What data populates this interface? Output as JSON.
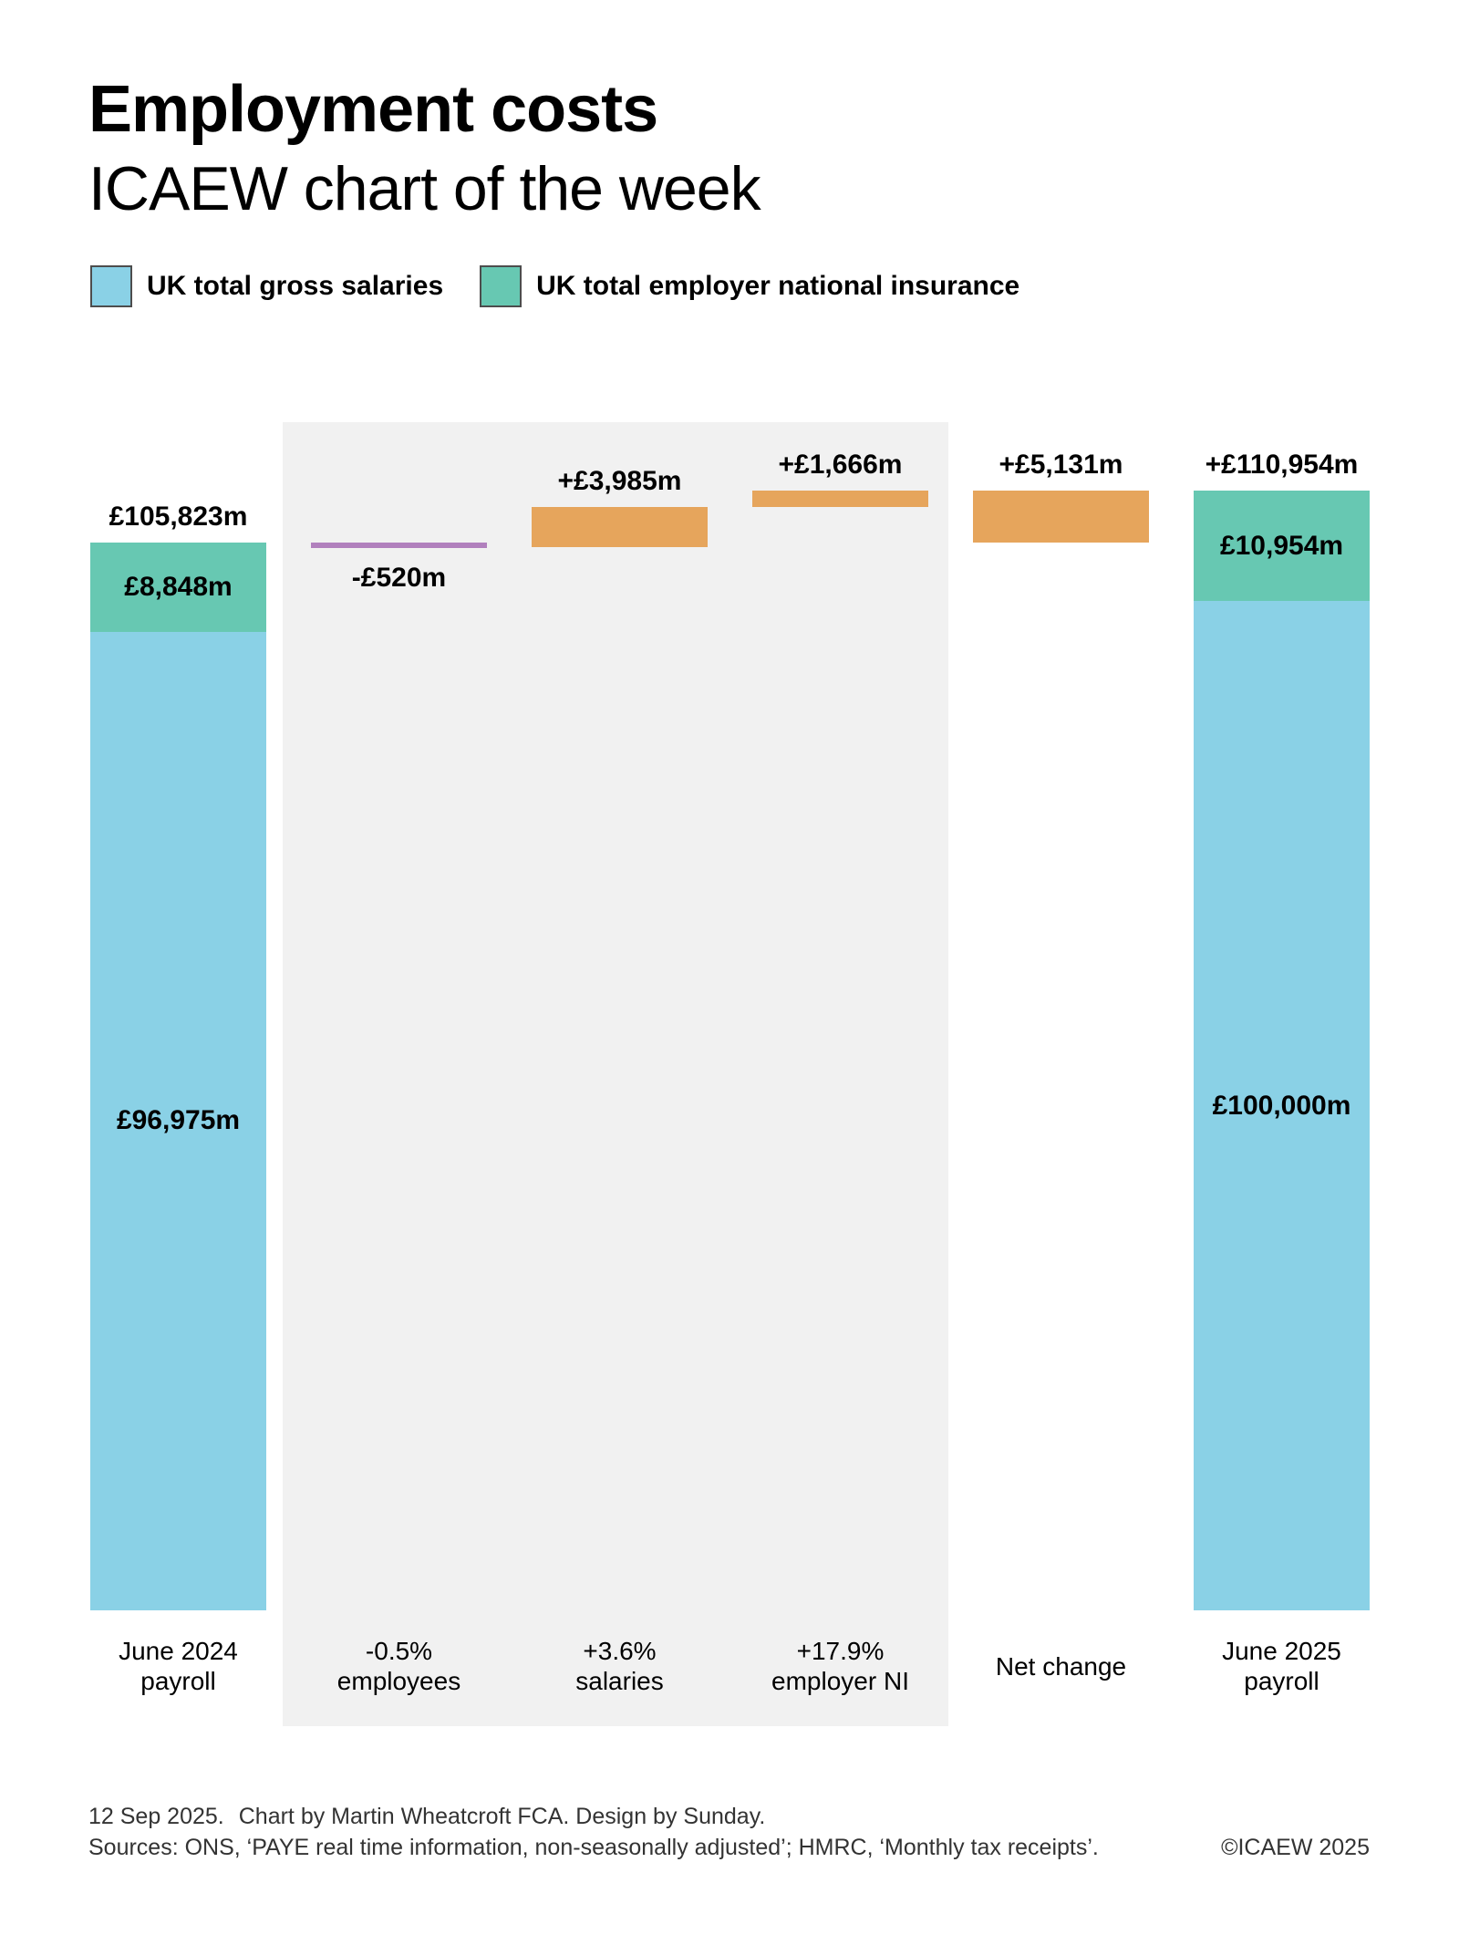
{
  "page": {
    "title": "Employment costs",
    "subtitle": "ICAEW chart of the week"
  },
  "legend": [
    {
      "label": "UK total gross salaries",
      "color": "#8ad1e6"
    },
    {
      "label": "UK total employer national insurance",
      "color": "#67c8b2"
    }
  ],
  "chart_data": {
    "type": "bar",
    "subtype": "waterfall",
    "unit": "£m",
    "value_axis_hidden": true,
    "colors": {
      "salaries": "#8ad1e6",
      "ni": "#67c8b2",
      "positive": "#e6a55c",
      "negative": "#b180bd",
      "panel": "#f1f1f1"
    },
    "columns": [
      {
        "id": "june-2024-payroll",
        "kind": "stacked",
        "xlabel_lines": [
          "June 2024",
          "payroll"
        ],
        "total": 105823,
        "total_label": "£105,823m",
        "segments": [
          {
            "name": "UK total gross salaries",
            "value": 96975,
            "label": "£96,975m",
            "color_key": "salaries"
          },
          {
            "name": "UK total employer national insurance",
            "value": 8848,
            "label": "£8,848m",
            "color_key": "ni"
          }
        ]
      },
      {
        "id": "employees-change",
        "kind": "delta",
        "xlabel_lines": [
          "-0.5%",
          "employees"
        ],
        "start": 105823,
        "value": -520,
        "label": "-£520m",
        "label_position": "below",
        "color_key": "negative"
      },
      {
        "id": "salaries-change",
        "kind": "delta",
        "xlabel_lines": [
          "+3.6%",
          "salaries"
        ],
        "start": 105303,
        "value": 3985,
        "label": "+£3,985m",
        "label_position": "above",
        "color_key": "positive"
      },
      {
        "id": "employer-ni-change",
        "kind": "delta",
        "xlabel_lines": [
          "+17.9%",
          "employer NI"
        ],
        "start": 109288,
        "value": 1666,
        "label": "+£1,666m",
        "label_position": "above",
        "color_key": "positive"
      },
      {
        "id": "net-change",
        "kind": "delta",
        "xlabel_lines": [
          "Net change"
        ],
        "start": 105823,
        "value": 5131,
        "label": "+£5,131m",
        "label_position": "above",
        "color_key": "positive"
      },
      {
        "id": "june-2025-payroll",
        "kind": "stacked",
        "xlabel_lines": [
          "June 2025",
          "payroll"
        ],
        "total": 110954,
        "total_label": "+£110,954m",
        "segments": [
          {
            "name": "UK total gross salaries",
            "value": 100000,
            "label": "£100,000m",
            "color_key": "salaries"
          },
          {
            "name": "UK total employer national insurance",
            "value": 10954,
            "label": "£10,954m",
            "color_key": "ni"
          }
        ]
      }
    ]
  },
  "footer": {
    "date": "12 Sep 2025.",
    "credit": "Chart by Martin Wheatcroft FCA. Design by Sunday.",
    "sources": "Sources: ONS, ‘PAYE real time information, non-seasonally adjusted’; HMRC, ‘Monthly tax receipts’.",
    "copyright": "©ICAEW 2025"
  }
}
